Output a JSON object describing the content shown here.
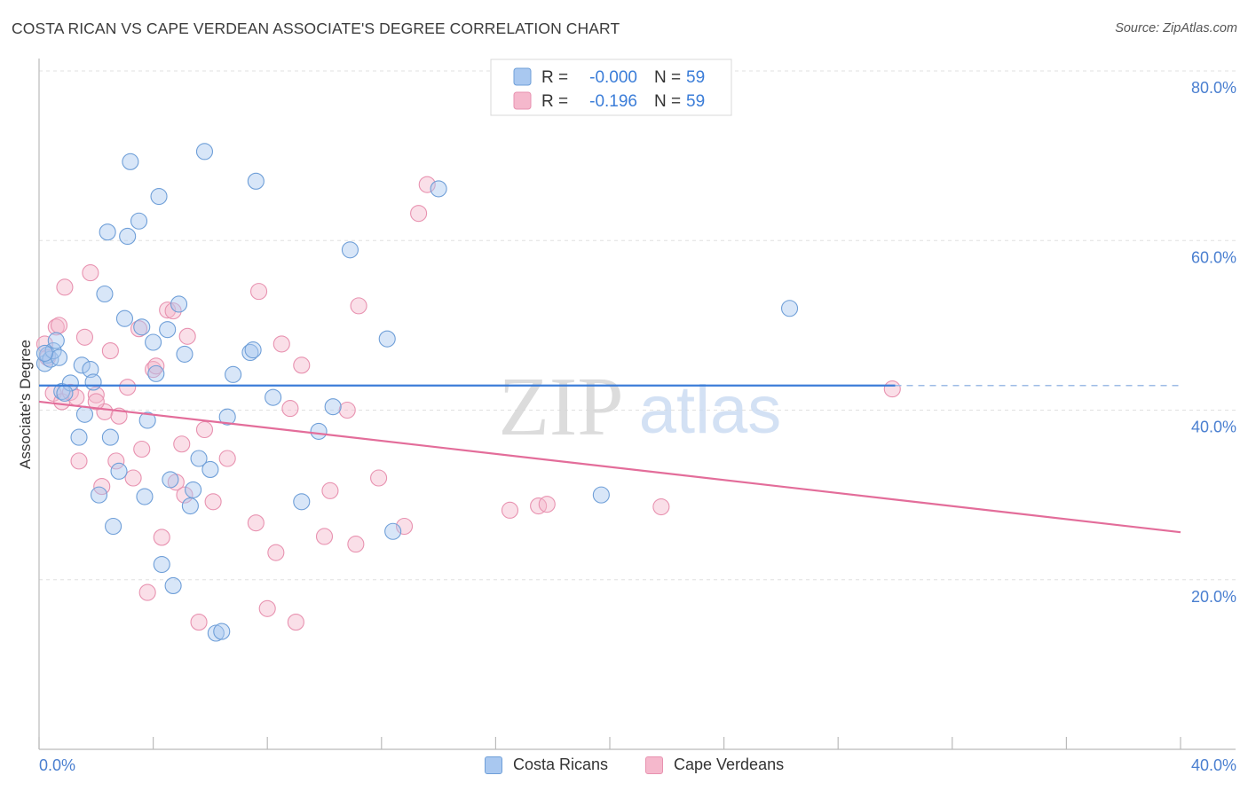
{
  "title": "COSTA RICAN VS CAPE VERDEAN ASSOCIATE'S DEGREE CORRELATION CHART",
  "source": "Source: ZipAtlas.com",
  "watermark": {
    "zip": "ZIP",
    "atlas": "atlas"
  },
  "colors": {
    "blue_fill": "#a9c8f0",
    "blue_stroke": "#6f9fd8",
    "blue_line": "#3b7dd8",
    "pink_fill": "#f5b8cc",
    "pink_stroke": "#e892b0",
    "pink_line": "#e36d9a",
    "tick_label": "#4a7fd0",
    "grid": "#e0e0e0",
    "axis": "#bbbbbb"
  },
  "legend": [
    {
      "r_label": "R =",
      "r_value": "-0.000",
      "n_label": "N =",
      "n_value": "59",
      "series": "Costa Ricans"
    },
    {
      "r_label": "R =",
      "r_value": "-0.196",
      "n_label": "N =",
      "n_value": "59",
      "series": "Cape Verdeans"
    }
  ],
  "chart_data": {
    "type": "scatter",
    "title": "COSTA RICAN VS CAPE VERDEAN ASSOCIATE'S DEGREE CORRELATION CHART",
    "xlabel": "",
    "ylabel": "Associate's Degree",
    "xlim": [
      0,
      40
    ],
    "ylim": [
      0,
      80
    ],
    "x_tick_labels": [
      "0.0%",
      "40.0%"
    ],
    "y_ticks": [
      20,
      40,
      60,
      80
    ],
    "y_tick_labels": [
      "20.0%",
      "40.0%",
      "60.0%",
      "80.0%"
    ],
    "grid": true,
    "series": [
      {
        "name": "Costa Ricans",
        "color": "#a9c8f0",
        "trend": {
          "x": [
            0,
            30
          ],
          "y": [
            42.9,
            42.9
          ],
          "dashed_to": 40
        },
        "points": [
          [
            0.2,
            45.5
          ],
          [
            0.3,
            46.5
          ],
          [
            0.4,
            46.0
          ],
          [
            0.5,
            47.0
          ],
          [
            0.6,
            48.2
          ],
          [
            0.7,
            46.2
          ],
          [
            0.8,
            42.2
          ],
          [
            1.1,
            43.2
          ],
          [
            1.5,
            45.3
          ],
          [
            1.6,
            39.5
          ],
          [
            1.8,
            44.8
          ],
          [
            1.9,
            43.3
          ],
          [
            2.1,
            30.0
          ],
          [
            2.3,
            53.7
          ],
          [
            2.4,
            61.0
          ],
          [
            2.6,
            26.3
          ],
          [
            2.8,
            32.8
          ],
          [
            3.0,
            50.8
          ],
          [
            3.1,
            60.5
          ],
          [
            3.2,
            69.3
          ],
          [
            3.5,
            62.3
          ],
          [
            3.6,
            49.8
          ],
          [
            3.7,
            29.8
          ],
          [
            3.8,
            38.8
          ],
          [
            4.0,
            48.0
          ],
          [
            4.1,
            44.3
          ],
          [
            4.2,
            65.2
          ],
          [
            4.3,
            21.8
          ],
          [
            4.5,
            49.5
          ],
          [
            4.6,
            31.8
          ],
          [
            4.7,
            19.3
          ],
          [
            4.9,
            52.5
          ],
          [
            5.1,
            46.6
          ],
          [
            5.3,
            28.7
          ],
          [
            5.4,
            30.6
          ],
          [
            5.6,
            34.3
          ],
          [
            5.8,
            70.5
          ],
          [
            6.0,
            33.0
          ],
          [
            6.2,
            13.7
          ],
          [
            6.4,
            13.9
          ],
          [
            6.6,
            39.2
          ],
          [
            6.8,
            44.2
          ],
          [
            7.4,
            46.8
          ],
          [
            7.5,
            47.1
          ],
          [
            7.6,
            67.0
          ],
          [
            8.2,
            41.5
          ],
          [
            9.2,
            29.2
          ],
          [
            9.8,
            37.5
          ],
          [
            10.3,
            40.4
          ],
          [
            10.9,
            58.9
          ],
          [
            12.2,
            48.4
          ],
          [
            12.4,
            25.7
          ],
          [
            14.0,
            66.1
          ],
          [
            19.7,
            30.0
          ],
          [
            26.3,
            52.0
          ],
          [
            1.4,
            36.8
          ],
          [
            2.5,
            36.8
          ],
          [
            0.9,
            42.0
          ],
          [
            0.2,
            46.7
          ]
        ]
      },
      {
        "name": "Cape Verdeans",
        "color": "#f5b8cc",
        "trend": {
          "x": [
            0,
            40
          ],
          "y": [
            41.0,
            25.6
          ]
        },
        "points": [
          [
            0.2,
            47.8
          ],
          [
            0.3,
            46.2
          ],
          [
            0.5,
            42.0
          ],
          [
            0.6,
            49.8
          ],
          [
            0.7,
            50.0
          ],
          [
            0.8,
            41.0
          ],
          [
            0.9,
            54.5
          ],
          [
            1.1,
            42.1
          ],
          [
            1.3,
            41.5
          ],
          [
            1.4,
            34.0
          ],
          [
            1.6,
            48.6
          ],
          [
            1.8,
            56.2
          ],
          [
            2.0,
            41.8
          ],
          [
            2.2,
            31.0
          ],
          [
            2.3,
            39.8
          ],
          [
            2.5,
            47.0
          ],
          [
            2.7,
            34.0
          ],
          [
            2.8,
            39.3
          ],
          [
            3.1,
            42.7
          ],
          [
            3.3,
            32.0
          ],
          [
            3.5,
            49.6
          ],
          [
            3.6,
            35.4
          ],
          [
            3.8,
            18.5
          ],
          [
            4.0,
            44.8
          ],
          [
            4.1,
            45.2
          ],
          [
            4.3,
            25.0
          ],
          [
            4.5,
            51.8
          ],
          [
            4.7,
            51.7
          ],
          [
            4.8,
            31.5
          ],
          [
            5.0,
            36.0
          ],
          [
            5.1,
            30.0
          ],
          [
            5.2,
            48.7
          ],
          [
            5.6,
            15.0
          ],
          [
            5.8,
            37.7
          ],
          [
            6.1,
            29.2
          ],
          [
            6.6,
            34.3
          ],
          [
            7.6,
            26.7
          ],
          [
            7.7,
            54.0
          ],
          [
            8.0,
            16.6
          ],
          [
            8.3,
            23.2
          ],
          [
            8.5,
            47.8
          ],
          [
            8.8,
            40.2
          ],
          [
            9.0,
            15.0
          ],
          [
            9.2,
            45.3
          ],
          [
            10.0,
            25.1
          ],
          [
            10.2,
            30.5
          ],
          [
            10.8,
            40.0
          ],
          [
            11.1,
            24.2
          ],
          [
            11.2,
            52.3
          ],
          [
            11.9,
            32.0
          ],
          [
            12.8,
            26.3
          ],
          [
            13.3,
            63.2
          ],
          [
            13.6,
            66.6
          ],
          [
            16.5,
            28.2
          ],
          [
            17.5,
            28.7
          ],
          [
            17.8,
            28.9
          ],
          [
            21.8,
            28.6
          ],
          [
            29.9,
            42.5
          ],
          [
            2.0,
            41.0
          ]
        ]
      }
    ]
  }
}
